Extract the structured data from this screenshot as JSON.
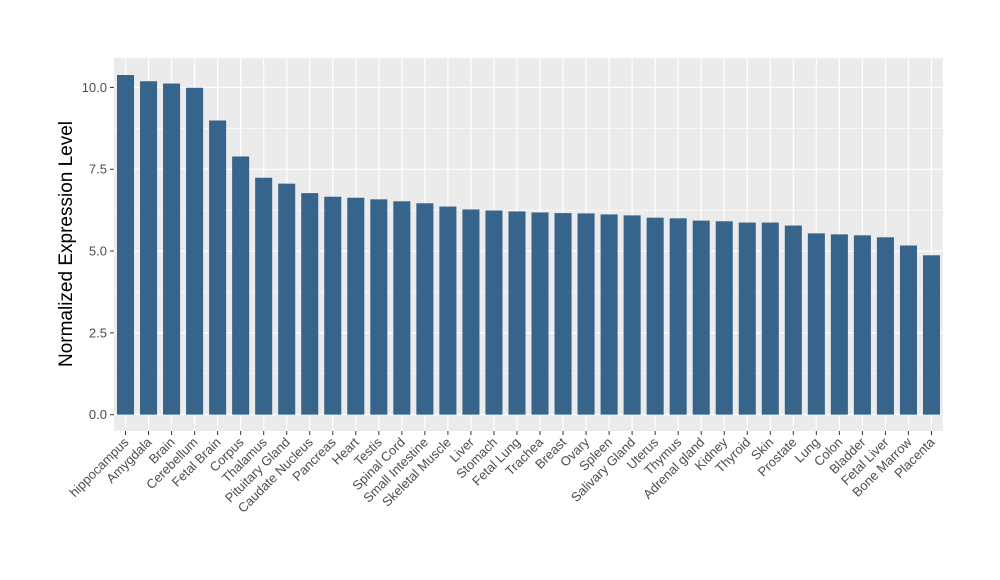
{
  "chart_data": {
    "type": "bar",
    "title": "",
    "xlabel": "",
    "ylabel": "Normalized Expression Level",
    "ylim": [
      -0.5,
      10.9
    ],
    "yticks": [
      0.0,
      2.5,
      5.0,
      7.5,
      10.0
    ],
    "ytick_labels": [
      "0.0",
      "2.5",
      "5.0",
      "7.5",
      "10.0"
    ],
    "grid": true,
    "bar_color": "#36648b",
    "panel_color": "#ebebeb",
    "grid_color": "#ffffff",
    "categories": [
      "hippocampus",
      "Amygdala",
      "Brain",
      "Cerebellum",
      "Fetal Brain",
      "Corpus",
      "Thalamus",
      "Pituitary Gland",
      "Caudate Nucleus",
      "Pancreas",
      "Heart",
      "Testis",
      "Spinal Cord",
      "Small Intestine",
      "Skeletal Muscle",
      "Liver",
      "Stomach",
      "Fetal Lung",
      "Trachea",
      "Breast",
      "Ovary",
      "Spleen",
      "Salivary Gland",
      "Uterus",
      "Thymus",
      "Adrenal gland",
      "Kidney",
      "Thyroid",
      "Skin",
      "Prostate",
      "Lung",
      "Colon",
      "Bladder",
      "Fetal Liver",
      "Bone Marrow",
      "Placenta"
    ],
    "values": [
      10.38,
      10.19,
      10.12,
      9.99,
      8.99,
      7.89,
      7.24,
      7.06,
      6.77,
      6.66,
      6.63,
      6.58,
      6.52,
      6.46,
      6.36,
      6.27,
      6.24,
      6.21,
      6.18,
      6.16,
      6.15,
      6.12,
      6.09,
      6.02,
      6.0,
      5.93,
      5.91,
      5.87,
      5.87,
      5.78,
      5.54,
      5.51,
      5.48,
      5.42,
      5.17,
      4.87
    ]
  }
}
